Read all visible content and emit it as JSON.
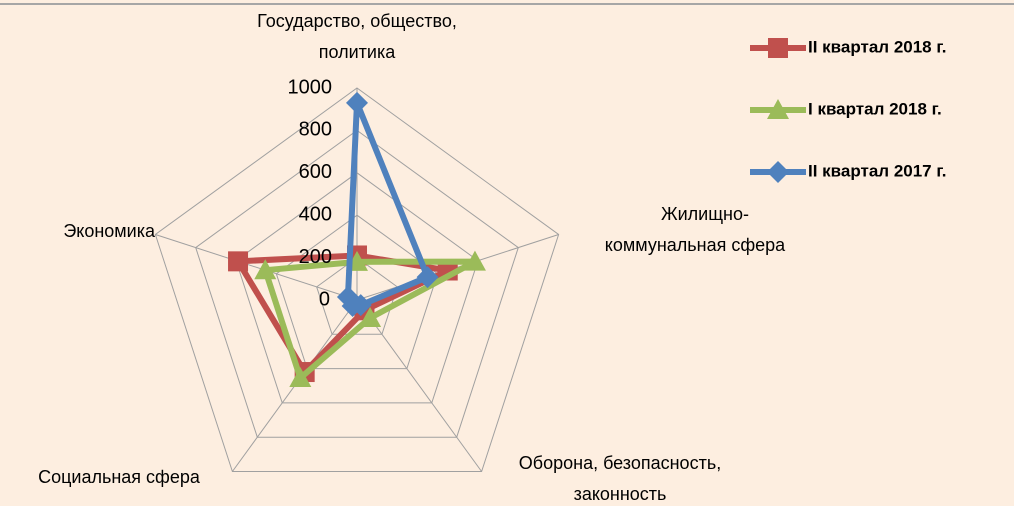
{
  "chart_data": {
    "type": "radar",
    "categories": [
      [
        "Государство, общество,",
        "политика"
      ],
      [
        "Жилищно-",
        "коммунальная сфера"
      ],
      [
        "Оборона, безопасность,",
        "законность"
      ],
      [
        "Социальная сфера"
      ],
      [
        "Экономика"
      ]
    ],
    "series": [
      {
        "name": "II квартал 2018 г.",
        "color": "#c0504d",
        "marker": "square",
        "values": [
          210,
          450,
          60,
          420,
          590
        ]
      },
      {
        "name": "I квартал 2018 г.",
        "color": "#9bbb59",
        "marker": "triangle",
        "values": [
          180,
          585,
          105,
          455,
          455
        ]
      },
      {
        "name": "II квартал 2017 г.",
        "color": "#4f81bd",
        "marker": "diamond",
        "values": [
          930,
          350,
          30,
          35,
          45
        ]
      }
    ],
    "ylim": [
      0,
      1000
    ],
    "yticks": [
      0,
      200,
      400,
      600,
      800,
      1000
    ],
    "grid": true,
    "legend": "right"
  }
}
